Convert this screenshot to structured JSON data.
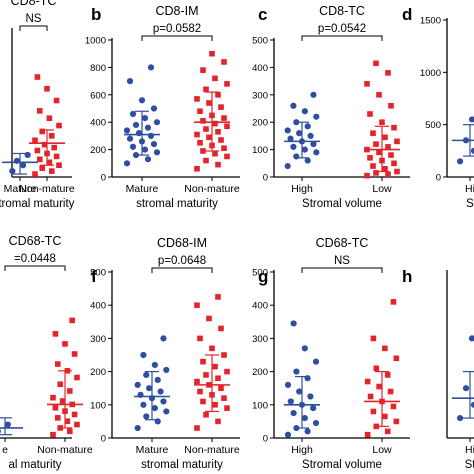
{
  "colors": {
    "group1": "#2e4fa0",
    "group2": "#e3242b",
    "axis": "#000000"
  },
  "chart_data": [
    {
      "id": "a",
      "type": "scatter",
      "title": "CD8-TC",
      "p_label": "NS",
      "categories": [
        "Mature",
        "Non-mature"
      ],
      "xlabel": "stromal maturity",
      "ylim": [
        0,
        1000
      ],
      "y_ticks": [],
      "groups": [
        {
          "name": "Mature",
          "mean": 100,
          "sd_low": 20,
          "sd_high": 160,
          "values": [
            40,
            80,
            110,
            150
          ]
        },
        {
          "name": "Non-mature",
          "mean": 230,
          "sd_low": 80,
          "sd_high": 320,
          "values": [
            20,
            40,
            60,
            80,
            100,
            120,
            140,
            160,
            180,
            200,
            220,
            250,
            280,
            310,
            350,
            400,
            450,
            520,
            600,
            680
          ]
        }
      ]
    },
    {
      "id": "b",
      "type": "scatter",
      "title": "CD8-IM",
      "p_label": "p=0.0582",
      "categories": [
        "Mature",
        "Non-mature"
      ],
      "xlabel": "stromal maturity",
      "ylim": [
        0,
        1000
      ],
      "y_ticks": [
        0,
        200,
        400,
        600,
        800,
        1000
      ],
      "groups": [
        {
          "name": "Mature",
          "mean": 310,
          "sd_low": 160,
          "sd_high": 480,
          "values": [
            100,
            130,
            160,
            180,
            200,
            220,
            240,
            260,
            280,
            300,
            320,
            340,
            360,
            380,
            400,
            430,
            460,
            500,
            560,
            700,
            800
          ]
        },
        {
          "name": "Non-mature",
          "mean": 400,
          "sd_low": 190,
          "sd_high": 620,
          "values": [
            60,
            90,
            120,
            150,
            170,
            190,
            210,
            230,
            250,
            270,
            290,
            310,
            330,
            350,
            370,
            390,
            410,
            430,
            450,
            480,
            510,
            540,
            570,
            600,
            640,
            680,
            720,
            780,
            840,
            900
          ]
        }
      ]
    },
    {
      "id": "c",
      "type": "scatter",
      "title": "CD8-TC",
      "p_label": "p=0.0542",
      "categories": [
        "High",
        "Low"
      ],
      "xlabel": "Stromal volume",
      "ylim": [
        0,
        500
      ],
      "y_ticks": [
        0,
        100,
        200,
        300,
        400,
        500
      ],
      "groups": [
        {
          "name": "High",
          "mean": 130,
          "sd_low": 70,
          "sd_high": 200,
          "values": [
            40,
            60,
            75,
            90,
            100,
            110,
            120,
            130,
            140,
            150,
            160,
            170,
            185,
            200,
            220,
            240,
            260,
            300
          ]
        },
        {
          "name": "Low",
          "mean": 100,
          "sd_low": 20,
          "sd_high": 185,
          "values": [
            5,
            10,
            15,
            20,
            30,
            40,
            50,
            60,
            70,
            80,
            90,
            100,
            110,
            120,
            130,
            145,
            160,
            180,
            200,
            230,
            260,
            300,
            340,
            380,
            415
          ]
        }
      ]
    },
    {
      "id": "d",
      "type": "scatter",
      "title": "",
      "p_label": "",
      "categories": [
        "Hi"
      ],
      "xlabel": "S",
      "ylim": [
        0,
        1500
      ],
      "y_ticks": [
        0,
        500,
        1000,
        1500
      ],
      "groups": [
        {
          "name": "Hi",
          "mean": 350,
          "sd_low": 200,
          "sd_high": 500,
          "values": [
            150,
            250,
            350,
            450,
            550
          ]
        }
      ]
    },
    {
      "id": "e",
      "type": "scatter",
      "title": "CD68-TC",
      "p_label": "=0.0448",
      "categories": [
        "e",
        "Non-mature"
      ],
      "xlabel": "al maturity",
      "ylim": [
        0,
        500
      ],
      "y_ticks": [],
      "groups": [
        {
          "name": "Mature",
          "mean": 30,
          "sd_low": 10,
          "sd_high": 60,
          "values": [
            20,
            40
          ]
        },
        {
          "name": "Non-mature",
          "mean": 100,
          "sd_low": 30,
          "sd_high": 200,
          "values": [
            10,
            20,
            30,
            40,
            50,
            60,
            70,
            80,
            90,
            100,
            110,
            120,
            140,
            160,
            180,
            200,
            220,
            250,
            280,
            310,
            350
          ]
        }
      ]
    },
    {
      "id": "f",
      "type": "scatter",
      "title": "CD68-IM",
      "p_label": "p=0.0648",
      "categories": [
        "Mature",
        "Non-mature"
      ],
      "xlabel": "stromal maturity",
      "ylim": [
        0,
        500
      ],
      "y_ticks": [
        0,
        100,
        200,
        300,
        400,
        500
      ],
      "groups": [
        {
          "name": "Mature",
          "mean": 125,
          "sd_low": 55,
          "sd_high": 200,
          "values": [
            30,
            50,
            65,
            80,
            90,
            100,
            110,
            120,
            130,
            140,
            150,
            160,
            175,
            190,
            205,
            220,
            250,
            300
          ]
        },
        {
          "name": "Non-mature",
          "mean": 160,
          "sd_low": 80,
          "sd_high": 250,
          "values": [
            30,
            50,
            70,
            90,
            100,
            110,
            120,
            130,
            140,
            150,
            160,
            170,
            180,
            190,
            200,
            215,
            230,
            250,
            270,
            300,
            330,
            360,
            400,
            425
          ]
        }
      ]
    },
    {
      "id": "g",
      "type": "scatter",
      "title": "CD68-TC",
      "p_label": "NS",
      "categories": [
        "High",
        "Low"
      ],
      "xlabel": "Stromal volume",
      "ylim": [
        0,
        500
      ],
      "y_ticks": [
        0,
        100,
        200,
        300,
        400,
        500
      ],
      "groups": [
        {
          "name": "High",
          "mean": 100,
          "sd_low": 30,
          "sd_high": 185,
          "values": [
            10,
            20,
            30,
            45,
            60,
            75,
            90,
            100,
            110,
            125,
            140,
            160,
            180,
            200,
            230,
            270,
            345
          ]
        },
        {
          "name": "Low",
          "mean": 110,
          "sd_low": 35,
          "sd_high": 200,
          "values": [
            10,
            20,
            35,
            50,
            65,
            80,
            95,
            110,
            125,
            140,
            155,
            170,
            190,
            210,
            240,
            270,
            300,
            410
          ]
        }
      ]
    },
    {
      "id": "h",
      "type": "scatter",
      "title": "",
      "p_label": "",
      "categories": [
        "Hi"
      ],
      "xlabel": "St",
      "ylim": [
        0,
        500
      ],
      "y_ticks": [],
      "groups": [
        {
          "name": "Hi",
          "mean": 120,
          "sd_low": 60,
          "sd_high": 200,
          "values": [
            60,
            100,
            150,
            200,
            300
          ]
        }
      ]
    }
  ]
}
